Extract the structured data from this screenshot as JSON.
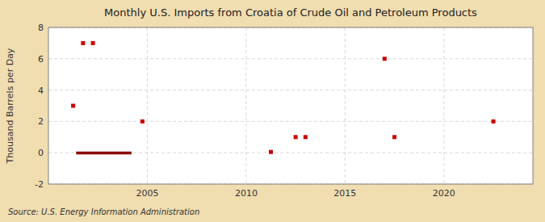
{
  "chart_data": {
    "type": "scatter",
    "title": "Monthly U.S. Imports from Croatia of Crude Oil and Petroleum Products",
    "ylabel": "Thousand Barrels per Day",
    "source": "Source: U.S. Energy Information Administration",
    "background_color": "#f0ddb0",
    "plot_background_color": "#ffffff",
    "xlim": [
      2000.0,
      2024.5
    ],
    "xticks": [
      2005,
      2010,
      2015,
      2020
    ],
    "ylim": [
      -2,
      8
    ],
    "yticks": [
      -2,
      0,
      2,
      4,
      6,
      8
    ],
    "grid": true,
    "series": [
      {
        "type": "scatter",
        "marker": "square",
        "color": "#cc0000",
        "x": [
          2001.25,
          2001.75,
          2002.25,
          2004.75,
          2011.25,
          2012.5,
          2013.0,
          2017.0,
          2017.5,
          2022.5
        ],
        "values": [
          3.0,
          7.0,
          7.0,
          2.0,
          0.05,
          1.0,
          1.0,
          6.0,
          1.0,
          2.0
        ]
      },
      {
        "type": "line",
        "color": "#8b0000",
        "x": [
          2001.4,
          2004.2
        ],
        "values": [
          -0.02,
          -0.02
        ]
      }
    ]
  }
}
